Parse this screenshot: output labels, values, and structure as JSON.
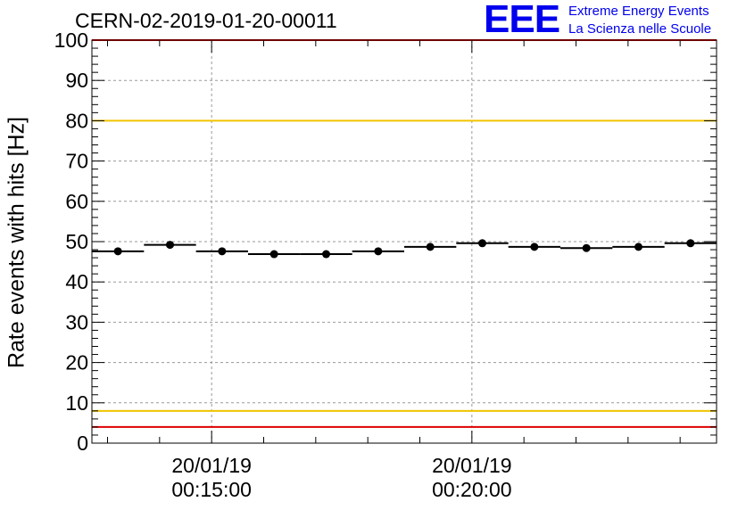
{
  "header": {
    "run_title": "CERN-02-2019-01-20-00011",
    "logo_mark": "EEE",
    "logo_line1": "Extreme Energy Events",
    "logo_line2": "La Scienza nelle Scuole"
  },
  "chart_data": {
    "type": "scatter",
    "title": "CERN-02-2019-01-20-00011",
    "xlabel": "",
    "ylabel": "Rate events with hits [Hz]",
    "x_unit": "time (minutes after 2019-01-20 00:00)",
    "xlim": [
      12.7,
      24.7
    ],
    "ylim": [
      0,
      100
    ],
    "y_ticks": [
      0,
      10,
      20,
      30,
      40,
      50,
      60,
      70,
      80,
      90,
      100
    ],
    "x_ticks": [
      {
        "x": 15,
        "date": "20/01/19",
        "time": "00:15:00"
      },
      {
        "x": 20,
        "date": "20/01/19",
        "time": "00:20:00"
      }
    ],
    "grid": true,
    "bin_width": 1.0,
    "series": [
      {
        "x": [
          13.2,
          14.2,
          15.2,
          16.2,
          17.2,
          18.2,
          19.2,
          20.2,
          21.2,
          22.2,
          23.2,
          24.2
        ],
        "y": [
          47.6,
          49.2,
          47.6,
          46.9,
          46.9,
          47.6,
          48.7,
          49.6,
          48.7,
          48.4,
          48.7,
          49.6
        ]
      }
    ],
    "reference_lines": [
      {
        "y": 80,
        "color": "#f0c400"
      },
      {
        "y": 8,
        "color": "#f0c400"
      },
      {
        "y": 100,
        "color": "#e00000"
      },
      {
        "y": 4,
        "color": "#e00000"
      }
    ],
    "colors": {
      "marker": "#000000",
      "grid": "#999999"
    }
  }
}
